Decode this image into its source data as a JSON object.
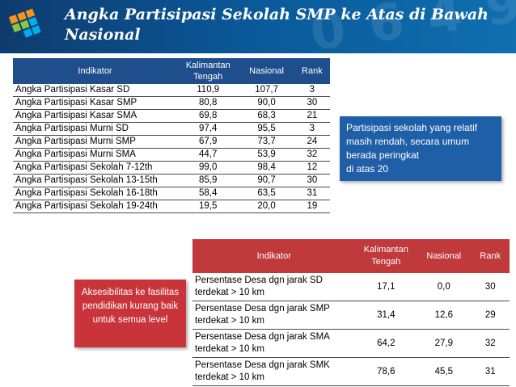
{
  "slide": {
    "title": "Angka Partisipasi Sekolah SMP ke Atas di Bawah Nasional",
    "title_line1": "Angka Partisipasi Sekolah SMP ke Atas di Bawah",
    "title_line2": "Nasional",
    "header_color": "#0a5796",
    "watermark": "0 6 4 9"
  },
  "table1": {
    "headers": [
      "Indikator",
      "Kalimantan Tengah",
      "Nasional",
      "Rank"
    ],
    "rows": [
      [
        "Angka Partisipasi Kasar  SD",
        "110,9",
        "107,7",
        "3"
      ],
      [
        "Angka Partisipasi Kasar  SMP",
        "80,8",
        "90,0",
        "30"
      ],
      [
        "Angka Partisipasi Kasar  SMA",
        "69,8",
        "68,3",
        "21"
      ],
      [
        "Angka Partisipasi Murni  SD",
        "97,4",
        "95,5",
        "3"
      ],
      [
        "Angka Partisipasi Murni  SMP",
        "67,9",
        "73,7",
        "24"
      ],
      [
        "Angka Partisipasi Murni  SMA",
        "44,7",
        "53,9",
        "32"
      ],
      [
        "Angka Partisipasi Sekolah 7-12th",
        "99,0",
        "98,4",
        "12"
      ],
      [
        "Angka Partisipasi Sekolah 13-15th",
        "85,9",
        "90,7",
        "30"
      ],
      [
        "Angka Partisipasi Sekolah 16-18th",
        "58,4",
        "63,5",
        "31"
      ],
      [
        "Angka Partisipasi Sekolah 19-24th",
        "19,5",
        "20,0",
        "19"
      ]
    ],
    "header_color": "#1f4e8c"
  },
  "callout_blue": {
    "lines": [
      "Partisipasi sekolah yang relatif",
      "masih rendah, secara umum",
      "berada peringkat",
      "di atas 20"
    ],
    "color": "#1f5fa8"
  },
  "table2": {
    "headers": [
      "Indikator",
      "Kalimantan Tengah",
      "Nasional",
      "Rank"
    ],
    "rows": [
      [
        "Persentase Desa dgn jarak SD terdekat > 10 km",
        "17,1",
        "0,0",
        "30"
      ],
      [
        "Persentase Desa dgn jarak SMP terdekat > 10 km",
        "31,4",
        "12,6",
        "29"
      ],
      [
        "Persentase Desa dgn jarak SMA terdekat > 10 km",
        "64,2",
        "27,9",
        "32"
      ],
      [
        "Persentase Desa dgn jarak SMK terdekat > 10 km",
        "78,6",
        "45,5",
        "31"
      ]
    ],
    "header_color": "#c0393b"
  },
  "callout_red": {
    "lines": [
      "Aksesibilitas ke fasilitas",
      "pendidikan kurang baik",
      "untuk semua level"
    ],
    "color": "#c9343a"
  }
}
